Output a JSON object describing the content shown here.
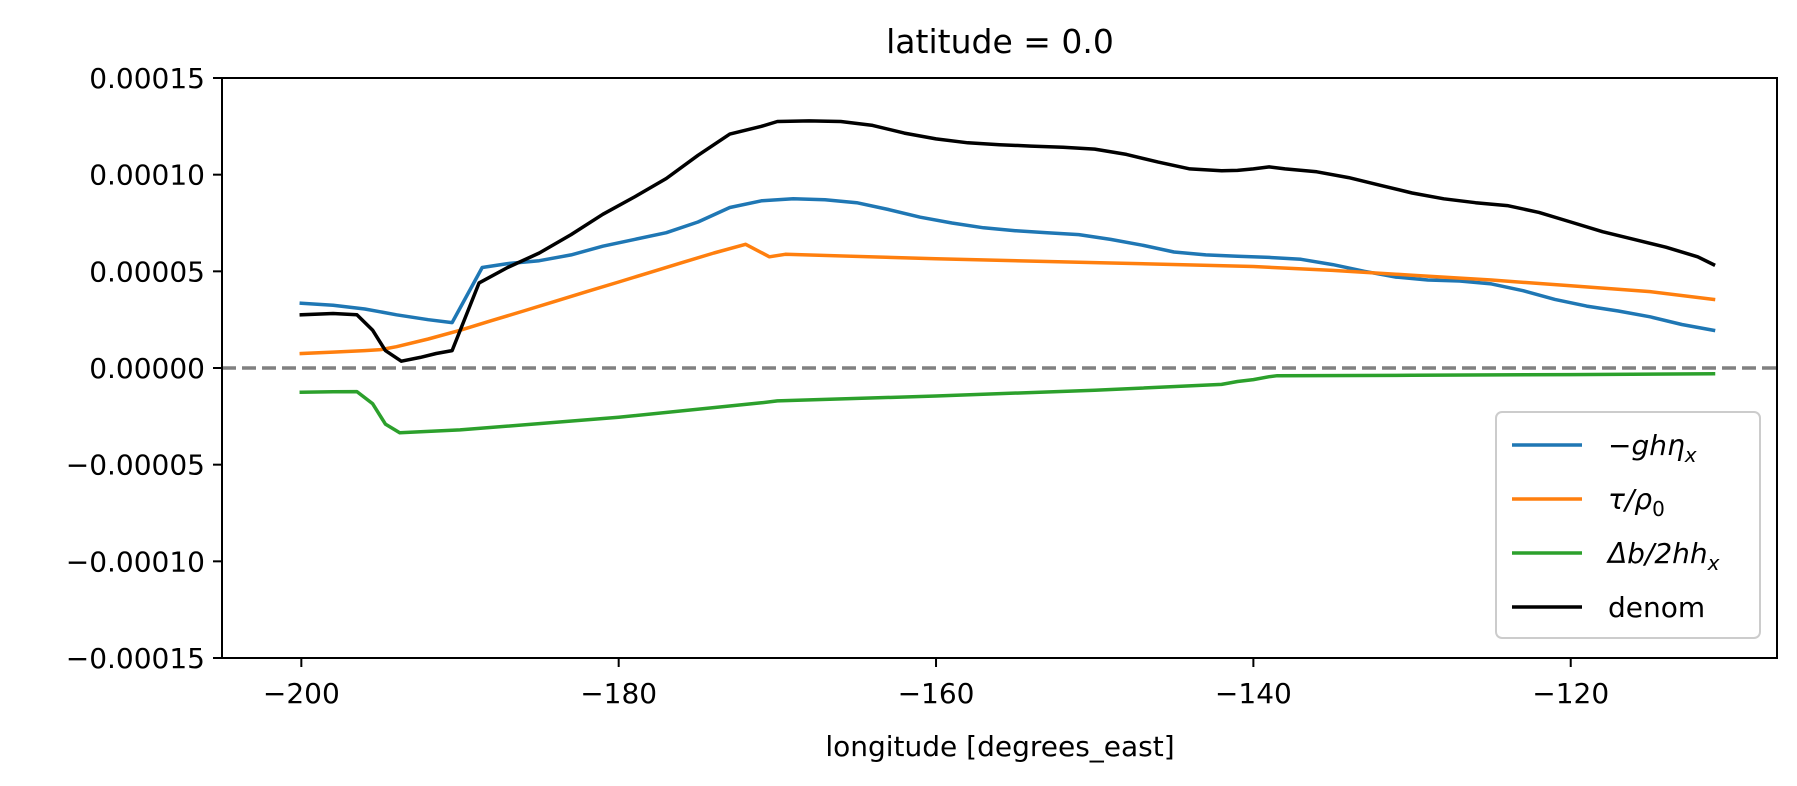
{
  "chart_data": {
    "type": "line",
    "title": "latitude = 0.0",
    "xlabel": "longitude [degrees_east]",
    "ylabel": "",
    "xlim": [
      -205,
      -107
    ],
    "ylim": [
      -0.00015,
      0.00015
    ],
    "xticks": [
      -200,
      -180,
      -160,
      -140,
      -120
    ],
    "xtick_labels": [
      "−200",
      "−180",
      "−160",
      "−140",
      "−120"
    ],
    "yticks": [
      0.00015,
      0.0001,
      5e-05,
      0.0,
      -5e-05,
      -0.0001,
      -0.00015
    ],
    "ytick_labels": [
      "0.00015",
      "0.00010",
      "0.00005",
      "0.00000",
      "−0.00005",
      "−0.00010",
      "−0.00015"
    ],
    "grid": false,
    "legend_position": "lower-right",
    "zero_line": {
      "y": 0.0,
      "color": "#808080",
      "style": "dashed"
    },
    "series": [
      {
        "name": "−ghη",
        "sub": "x",
        "color": "#1f77b4",
        "x": [
          -200,
          -198,
          -196,
          -194,
          -192,
          -190.5,
          -188.6,
          -187,
          -185,
          -183,
          -181,
          -179,
          -177,
          -175,
          -173,
          -171,
          -169,
          -167,
          -165,
          -163,
          -161,
          -159,
          -157,
          -155,
          -153,
          -151,
          -149,
          -147,
          -145,
          -143,
          -141,
          -139,
          -137,
          -135,
          -133,
          -131,
          -129,
          -127,
          -125,
          -123,
          -121,
          -119,
          -117,
          -115,
          -113,
          -111
        ],
        "y": [
          3.35e-05,
          3.25e-05,
          3.05e-05,
          2.75e-05,
          2.5e-05,
          2.35e-05,
          5.2e-05,
          5.4e-05,
          5.55e-05,
          5.85e-05,
          6.3e-05,
          6.65e-05,
          7e-05,
          7.55e-05,
          8.3e-05,
          8.65e-05,
          8.75e-05,
          8.7e-05,
          8.55e-05,
          8.2e-05,
          7.8e-05,
          7.5e-05,
          7.25e-05,
          7.1e-05,
          7e-05,
          6.9e-05,
          6.65e-05,
          6.35e-05,
          6e-05,
          5.85e-05,
          5.78e-05,
          5.72e-05,
          5.62e-05,
          5.35e-05,
          5e-05,
          4.7e-05,
          4.55e-05,
          4.5e-05,
          4.35e-05,
          4e-05,
          3.55e-05,
          3.2e-05,
          2.95e-05,
          2.65e-05,
          2.25e-05,
          1.95e-05
        ]
      },
      {
        "name": "τ/ρ",
        "sub": "0",
        "color": "#ff7f0e",
        "x": [
          -200,
          -198,
          -196,
          -195,
          -194,
          -192,
          -190,
          -188,
          -186,
          -184,
          -182,
          -180,
          -178,
          -176,
          -174,
          -172,
          -170.5,
          -169.5,
          -160,
          -150,
          -140,
          -135,
          -130,
          -125,
          -120,
          -115,
          -111
        ],
        "y": [
          7.5e-06,
          8.2e-06,
          9e-06,
          9.5e-06,
          1.1e-05,
          1.5e-05,
          1.95e-05,
          2.45e-05,
          2.95e-05,
          3.45e-05,
          3.95e-05,
          4.45e-05,
          4.95e-05,
          5.45e-05,
          5.95e-05,
          6.4e-05,
          5.75e-05,
          5.88e-05,
          5.65e-05,
          5.45e-05,
          5.25e-05,
          5.05e-05,
          4.8e-05,
          4.55e-05,
          4.25e-05,
          3.95e-05,
          3.55e-05
        ]
      },
      {
        "name": "Δb/2hh",
        "sub": "x",
        "color": "#2ca02c",
        "x": [
          -200,
          -198,
          -196.5,
          -195.5,
          -194.7,
          -193.8,
          -190,
          -180,
          -171,
          -170,
          -160,
          -150,
          -142,
          -141,
          -140,
          -139,
          -138.5,
          -130,
          -120,
          -111
        ],
        "y": [
          -1.25e-05,
          -1.23e-05,
          -1.22e-05,
          -1.85e-05,
          -2.9e-05,
          -3.35e-05,
          -3.2e-05,
          -2.55e-05,
          -1.8e-05,
          -1.7e-05,
          -1.45e-05,
          -1.15e-05,
          -8.5e-06,
          -7e-06,
          -6e-06,
          -4.5e-06,
          -4e-06,
          -3.8e-06,
          -3.4e-06,
          -3e-06
        ]
      },
      {
        "name": "denom",
        "sub": "",
        "color": "#000000",
        "x": [
          -200,
          -198,
          -196.5,
          -195.5,
          -194.7,
          -193.7,
          -192.5,
          -191.5,
          -190.5,
          -188.8,
          -187,
          -185,
          -183,
          -181,
          -179,
          -177,
          -175,
          -173,
          -171,
          -170,
          -168,
          -166,
          -164,
          -162,
          -160,
          -158,
          -156,
          -154,
          -152,
          -150,
          -148,
          -146,
          -144,
          -142,
          -141,
          -140,
          -139,
          -138,
          -136,
          -134,
          -132,
          -130,
          -128,
          -126,
          -124,
          -122,
          -120,
          -118,
          -116,
          -114,
          -112,
          -111
        ],
        "y": [
          2.75e-05,
          2.82e-05,
          2.75e-05,
          1.95e-05,
          9e-06,
          3.5e-06,
          5.5e-06,
          7.5e-06,
          9e-06,
          4.4e-05,
          5.2e-05,
          5.95e-05,
          6.9e-05,
          7.95e-05,
          8.85e-05,
          9.8e-05,
          0.00011,
          0.000121,
          0.000125,
          0.0001275,
          0.0001278,
          0.0001275,
          0.0001255,
          0.0001215,
          0.0001185,
          0.0001165,
          0.0001155,
          0.0001148,
          0.0001142,
          0.0001132,
          0.0001105,
          0.0001065,
          0.000103,
          0.000102,
          0.0001022,
          0.000103,
          0.000104,
          0.000103,
          0.0001015,
          9.85e-05,
          9.45e-05,
          9.05e-05,
          8.75e-05,
          8.55e-05,
          8.4e-05,
          8.05e-05,
          7.55e-05,
          7.05e-05,
          6.65e-05,
          6.25e-05,
          5.75e-05,
          5.35e-05
        ]
      }
    ]
  }
}
